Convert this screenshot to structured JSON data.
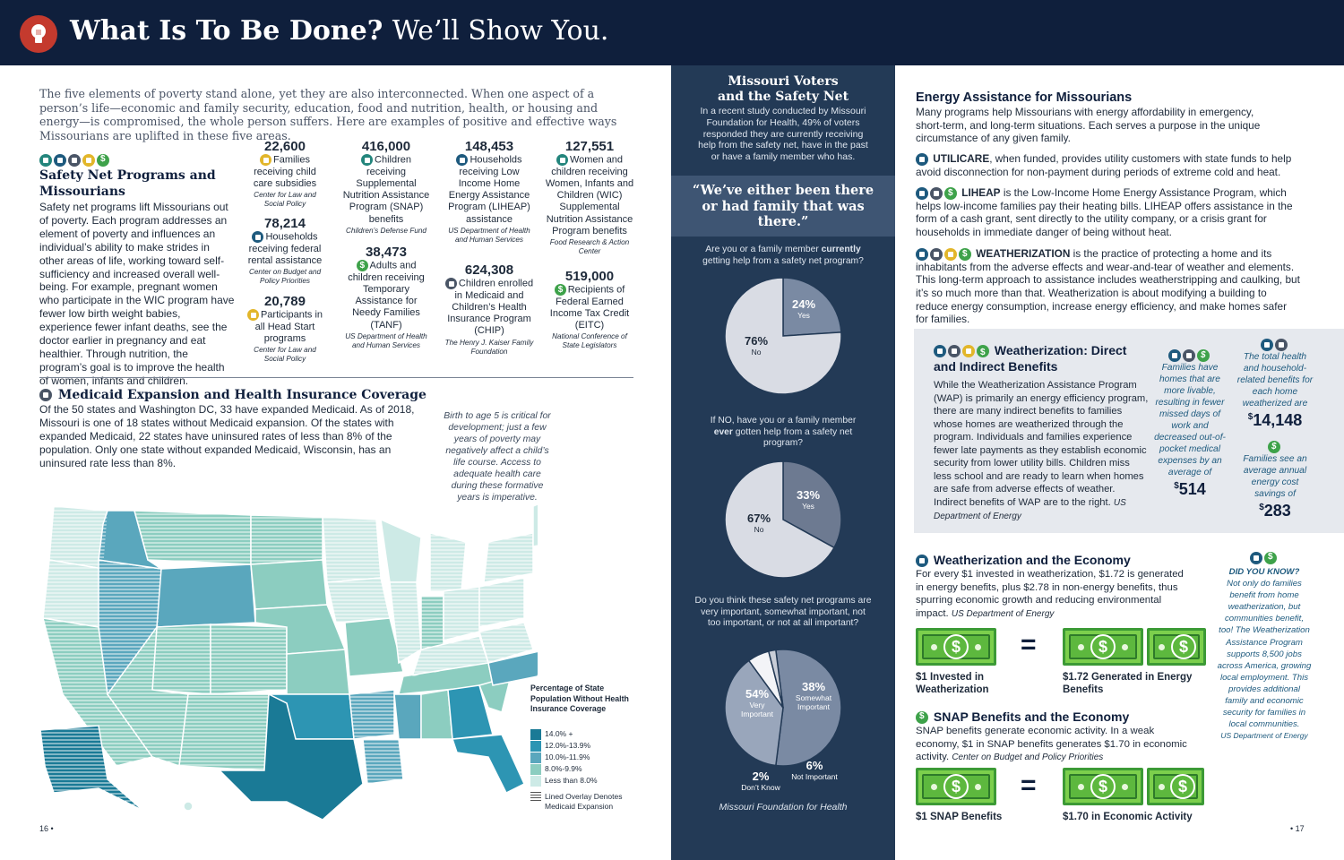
{
  "header": {
    "title_bold": "What Is To Be Done?",
    "title_rest": "We’ll Show You."
  },
  "intro": "The five elements of poverty stand alone, yet they are also interconnected. When one aspect of a person’s life—economic and family security, education, food and nutrition, health, or housing and energy—is compromised, the whole person suffers. Here are examples of positive and effective ways Missourians are uplifted in these five areas.",
  "safety_net": {
    "heading": "Safety Net Programs and Missourians",
    "body": "Safety net programs lift Missourians out of poverty. Each program addresses an element of poverty and influences an individual’s ability to make strides in other areas of life, working toward self-sufficiency and increased overall well-being. For example, pregnant women who participate in the WIC program have fewer low birth weight babies, experience fewer infant deaths, see the doctor earlier in pregnancy and eat healthier. Through nutrition, the program’s goal is to improve the health of women, infants and children."
  },
  "stats": [
    {
      "num": "22,600",
      "icon": "bread-icon",
      "text": "Families receiving child care subsidies",
      "src": "Center for Law and Social Policy"
    },
    {
      "num": "78,214",
      "icon": "home-icon",
      "text": "Households receiving federal rental assistance",
      "src": "Center on Budget and Policy Priorities"
    },
    {
      "num": "20,789",
      "icon": "bread-icon",
      "text": "Participants in all Head Start programs",
      "src": "Center for Law and Social Policy"
    },
    {
      "num": "416,000",
      "icon": "cart-icon",
      "text": "Children receiving Supplemental Nutrition Assistance Program (SNAP) benefits",
      "src": "Children’s Defense Fund"
    },
    {
      "num": "38,473",
      "icon": "dollar-icon",
      "text": "Adults and children receiving Temporary Assistance for Needy Families (TANF)",
      "src": "US Department of Health and Human Services"
    },
    {
      "num": "148,453",
      "icon": "home-icon",
      "text": "Households receiving Low Income Home Energy Assistance Program (LIHEAP) assistance",
      "src": "US Department of Health and Human Services"
    },
    {
      "num": "624,308",
      "icon": "band-icon",
      "text": "Children enrolled in Medicaid and Children’s Health Insurance Program (CHIP)",
      "src": "The Henry J. Kaiser Family Foundation"
    },
    {
      "num": "127,551",
      "icon": "cart-icon",
      "text": "Women and children receiving Women, Infants and Children (WIC) Supplemental Nutrition Assistance Program benefits",
      "src": "Food Research & Action Center"
    },
    {
      "num": "519,000",
      "icon": "dollar-icon",
      "text": "Recipients of Federal Earned Income Tax Credit (EITC)",
      "src": "National Conference of State Legislators"
    }
  ],
  "medicaid": {
    "heading": "Medicaid Expansion and Health Insurance Coverage",
    "body": "Of the 50 states and Washington DC, 33 have expanded Medicaid. As of 2018, Missouri is one of 18 states without Medicaid expansion. Of the states with expanded Medicaid, 22 states have uninsured rates of less than 8% of the population. Only one state without expanded Medicaid, Wisconsin, has an uninsured rate less than 8%.",
    "note": "Birth to age 5 is critical for development; just a few years of poverty may negatively affect a child’s life course. Access to adequate health care during these formative years is imperative.",
    "legend_title": "Percentage of State Population Without Health Insurance Coverage",
    "legend": [
      {
        "label": "14.0% +",
        "color": "#1a7a96"
      },
      {
        "label": "12.0%-13.9%",
        "color": "#2d95b3"
      },
      {
        "label": "10.0%-11.9%",
        "color": "#5aa7bd"
      },
      {
        "label": "8.0%-9.9%",
        "color": "#8ccdc0"
      },
      {
        "label": "Less than 8.0%",
        "color": "#cdeae6"
      }
    ],
    "legend_overlay": "Lined Overlay Denotes Medicaid Expansion"
  },
  "page_left": "16",
  "page_right": "17",
  "voters": {
    "title": "Missouri Voters and the Safety Net",
    "intro": "In a recent study conducted by Missouri Foundation for Health, 49% of voters responded they are currently receiving help from the safety net, have in the past or have a family member who has.",
    "quote": "“We’ve either been there or had family that was there.”",
    "q1_a": "Are you or a family member ",
    "q1_b": "currently",
    "q1_c": " getting help from a safety net program?",
    "q2_a": "If NO, have you or a family member ",
    "q2_b": "ever",
    "q2_c": " gotten help from a safety net program?",
    "q3": "Do you think these safety net programs are very important, somewhat important, not too important, or not at all important?",
    "source": "Missouri Foundation for Health"
  },
  "chart_data": [
    {
      "type": "pie",
      "categories": [
        "Yes",
        "No"
      ],
      "values": [
        24,
        76
      ]
    },
    {
      "type": "pie",
      "categories": [
        "Yes",
        "No"
      ],
      "values": [
        33,
        67
      ]
    },
    {
      "type": "pie",
      "categories": [
        "Very Important",
        "Somewhat Important",
        "Not Important",
        "Don’t Know"
      ],
      "values": [
        54,
        38,
        6,
        2
      ]
    }
  ],
  "pie_labels": {
    "p1_yes_pct": "24%",
    "p1_yes": "Yes",
    "p1_no_pct": "76%",
    "p1_no": "No",
    "p2_yes_pct": "33%",
    "p2_yes": "Yes",
    "p2_no_pct": "67%",
    "p2_no": "No",
    "p3_very_pct": "54%",
    "p3_very": "Very Important",
    "p3_some_pct": "38%",
    "p3_some": "Somewhat Important",
    "p3_not_pct": "6%",
    "p3_not": "Not Important",
    "p3_dk_pct": "2%",
    "p3_dk": "Don’t Know"
  },
  "energy": {
    "heading": "Energy Assistance for Missourians",
    "intro": "Many programs help Missourians with energy affordability in emergency, short-term, and long-term situations. Each serves a purpose in the unique circumstance of any given family.",
    "utilicare_name": "UTILICARE",
    "utilicare": ", when funded, provides utility customers with state funds to help avoid disconnection for non-payment during periods of extreme cold and heat.",
    "liheap_name": "LIHEAP",
    "liheap": " is the Low-Income Home Energy Assistance Program, which helps low-income families pay their heating bills. LIHEAP offers assistance in the form of a cash grant, sent directly to the utility company, or a crisis grant for households in immediate danger of being without heat.",
    "weather_name": "WEATHERIZATION",
    "weather": " is the practice of protecting a home and its inhabitants from the adverse effects and wear-and-tear of weather and elements. This long-term approach to assistance includes weatherstripping and caulking, but it’s so much more than that. Weatherization is about modifying a building to reduce energy consumption, increase energy efficiency, and make homes safer for families."
  },
  "wbox": {
    "heading": "Weatherization: Direct and Indirect Benefits",
    "body": "While the Weatherization Assistance Program (WAP) is primarily an energy efficiency program, there are many indirect benefits to families whose homes are weatherized through the program. Individuals and families experience fewer late payments as they establish economic security from lower utility bills. Children miss less school and are ready to learn when homes are safe from adverse effects of weather. Indirect benefits of WAP are to the right.",
    "source": "US Department of Energy",
    "stat1": "Families have homes that are more livable, resulting in fewer missed days of work and decreased out-of-pocket medical expenses by an average of",
    "stat1_val": "514",
    "stat2": "The total health and household-related benefits for each home weatherized are",
    "stat2_val": "14,148",
    "stat3": "Families see an average annual energy cost savings of",
    "stat3_val": "283",
    "currency": "$"
  },
  "economy": {
    "heading": "Weatherization and the Economy",
    "body": "For every $1 invested in weatherization, $1.72 is generated in energy benefits, plus $2.78 in non-energy benefits, thus spurring economic growth and reducing environmental impact.",
    "source": "US Department of Energy",
    "cap1": "$1 Invested in Weatherization",
    "cap2": "$1.72 Generated in Energy Benefits"
  },
  "snap": {
    "heading": "SNAP Benefits and the Economy",
    "body": "SNAP benefits generate economic activity. In a weak economy, $1 in SNAP benefits generates $1.70 in economic activity.",
    "source": "Center on Budget and Policy Priorities",
    "cap1": "$1 SNAP Benefits",
    "cap2": "$1.70 in Economic Activity"
  },
  "didyou": {
    "title": "DID YOU KNOW?",
    "body": "Not only do families benefit from home weatherization, but communities benefit, too! The Weatherization Assistance Program supports 8,500 jobs across America, growing local employment. This provides additional family and economic security for families in local communities.",
    "source": "US Department of Energy"
  },
  "equals": "=",
  "bill_symbol": "$"
}
